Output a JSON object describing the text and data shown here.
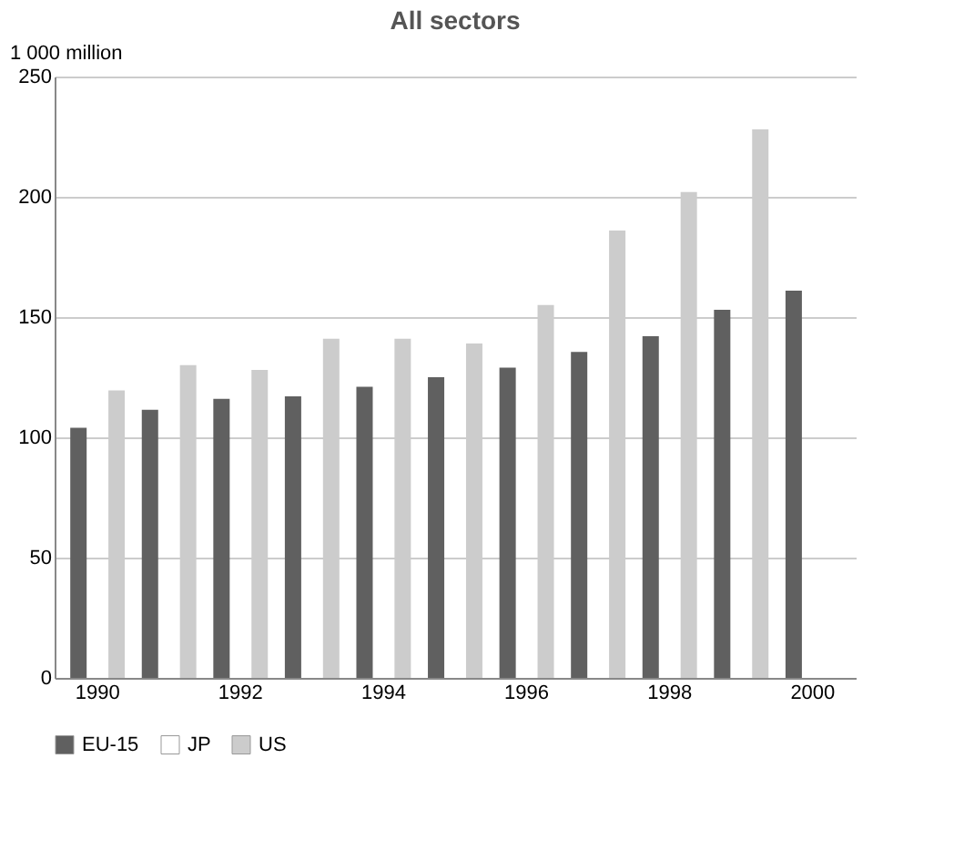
{
  "chart_data": {
    "type": "bar",
    "title": "All sectors",
    "ylabel": "1 000 million",
    "categories": [
      "1990",
      null,
      "1992",
      null,
      "1994",
      null,
      "1996",
      null,
      "1998",
      null,
      "2000"
    ],
    "series": [
      {
        "name": "EU-15",
        "color": "#606060",
        "values": [
          104,
          111.5,
          116,
          117,
          121,
          125,
          129,
          135.5,
          142,
          153,
          161
        ]
      },
      {
        "name": "JP",
        "color": "#ffffff",
        "values": [
          null,
          null,
          null,
          null,
          null,
          null,
          null,
          null,
          null,
          null,
          null
        ]
      },
      {
        "name": "US",
        "color": "#cccccc",
        "values": [
          119.5,
          130,
          128,
          141,
          141,
          139,
          155,
          186,
          202,
          228,
          null
        ]
      }
    ],
    "ylim": [
      0,
      250
    ],
    "yticks": [
      0,
      50,
      100,
      150,
      200,
      250
    ],
    "grid": "y",
    "legend": "bottom"
  }
}
